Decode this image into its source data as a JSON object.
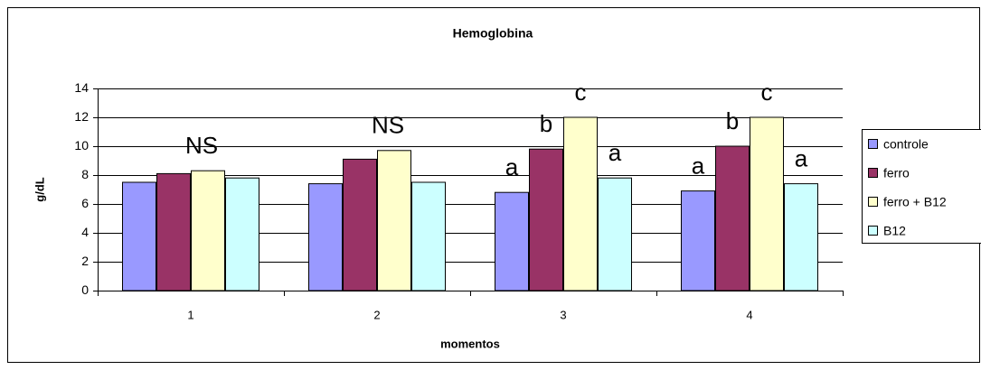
{
  "chart_data": {
    "type": "bar",
    "title": "Hemoglobina",
    "x_label": "momentos",
    "y_label": "g/dL",
    "categories": [
      "1",
      "2",
      "3",
      "4"
    ],
    "series": [
      {
        "name": "controle",
        "color": "#9999ff",
        "values": [
          7.5,
          7.4,
          6.8,
          6.9
        ]
      },
      {
        "name": "ferro",
        "color": "#993366",
        "values": [
          8.1,
          9.1,
          9.8,
          10
        ]
      },
      {
        "name": "ferro + B12",
        "color": "#ffffcc",
        "values": [
          8.3,
          9.7,
          12,
          12
        ]
      },
      {
        "name": "B12",
        "color": "#ccffff",
        "values": [
          7.8,
          7.5,
          7.8,
          7.4
        ]
      }
    ],
    "annotations": [
      {
        "text": "NS",
        "category": 0
      },
      {
        "text": "NS",
        "category": 1
      },
      {
        "text": "a",
        "category": 2,
        "series": 0
      },
      {
        "text": "b",
        "category": 2,
        "series": 1
      },
      {
        "text": "c",
        "category": 2,
        "series": 2
      },
      {
        "text": "a",
        "category": 2,
        "series": 3
      },
      {
        "text": "a",
        "category": 3,
        "series": 0
      },
      {
        "text": "b",
        "category": 3,
        "series": 1
      },
      {
        "text": "c",
        "category": 3,
        "series": 2
      },
      {
        "text": "a",
        "category": 3,
        "series": 3
      }
    ],
    "ylim": [
      0,
      14
    ],
    "yticks": [
      0,
      2,
      4,
      6,
      8,
      10,
      12,
      14
    ],
    "grid": true,
    "legend": "right"
  }
}
